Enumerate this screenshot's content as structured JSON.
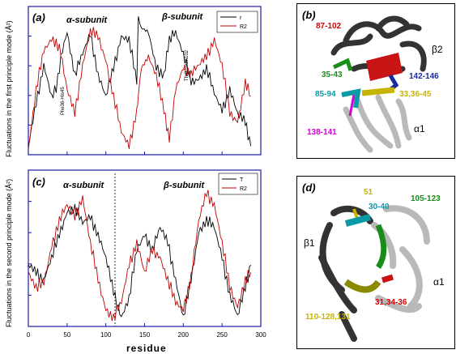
{
  "xlabel": "residue",
  "panel_a": {
    "label": "(a)",
    "alpha_title": "α-subunit",
    "beta_title": "β-subunit",
    "ylabel": "Fluctuations in the first principle mode (Å²)",
    "legend": [
      "r",
      "R2"
    ],
    "annot_left": "Phe36-His45",
    "annot_right": "Thr87-Asn102"
  },
  "panel_b": {
    "label": "(b)",
    "labels": [
      "87-102",
      "β2",
      "35-43",
      "142-146",
      "85-94",
      "33,36-45",
      "138-141",
      "α1"
    ]
  },
  "panel_c": {
    "label": "(c)",
    "alpha_title": "α-subunit",
    "beta_title": "β-subunit",
    "ylabel": "Fluctuations in the second principle mode (Å²)",
    "legend": [
      "T",
      "R2"
    ]
  },
  "panel_d": {
    "label": "(d)",
    "labels": [
      "51",
      "30-40",
      "105-123",
      "β1",
      "α1",
      "110-128,131",
      "31,34-36"
    ]
  },
  "colors": {
    "frame": "#1a1aa6",
    "series_black": "#000000",
    "series_red": "#c00000",
    "label_red": "#e00000",
    "label_green": "#1a8c1a",
    "label_blue": "#1a2aa0",
    "label_cyan": "#0a9aa6",
    "label_yellow": "#c8b400",
    "label_magenta": "#d400d4",
    "helix_dark": "#333333",
    "helix_light": "#b9b9b9"
  },
  "chart_data": [
    {
      "type": "line",
      "panel": "(a)",
      "xlim": [
        0,
        300
      ],
      "x": [
        0,
        10,
        20,
        30,
        36,
        42,
        50,
        60,
        70,
        80,
        90,
        100,
        110,
        120,
        130,
        140,
        142,
        146,
        155,
        165,
        175,
        182,
        190,
        200,
        210,
        220,
        230,
        240,
        250,
        260,
        270,
        280,
        287
      ],
      "series": [
        {
          "name": "r",
          "values": [
            0.05,
            0.35,
            0.62,
            0.4,
            0.45,
            0.68,
            0.85,
            0.55,
            0.7,
            0.84,
            0.55,
            0.4,
            0.6,
            0.82,
            0.8,
            0.5,
            0.95,
            0.88,
            0.85,
            0.6,
            0.55,
            0.8,
            0.85,
            0.7,
            0.5,
            0.52,
            0.6,
            0.42,
            0.3,
            0.45,
            0.28,
            0.22,
            0.05
          ]
        },
        {
          "name": "R2",
          "values": [
            0.02,
            0.45,
            0.72,
            0.8,
            0.78,
            0.7,
            0.45,
            0.28,
            0.62,
            0.86,
            0.82,
            0.65,
            0.4,
            0.15,
            0.05,
            0.3,
            0.42,
            0.6,
            0.68,
            0.55,
            0.3,
            0.1,
            0.45,
            0.6,
            0.56,
            0.62,
            0.68,
            0.8,
            0.62,
            0.28,
            0.22,
            0.5,
            0.4
          ]
        }
      ]
    },
    {
      "type": "line",
      "panel": "(c)",
      "xlim": [
        0,
        300
      ],
      "x": [
        0,
        10,
        20,
        30,
        40,
        50,
        60,
        70,
        80,
        90,
        100,
        110,
        120,
        130,
        140,
        150,
        160,
        170,
        180,
        190,
        200,
        210,
        220,
        230,
        240,
        250,
        260,
        270,
        280,
        287
      ],
      "series": [
        {
          "name": "T",
          "values": [
            0.4,
            0.35,
            0.3,
            0.45,
            0.6,
            0.75,
            0.78,
            0.68,
            0.72,
            0.6,
            0.45,
            0.22,
            0.05,
            0.18,
            0.5,
            0.6,
            0.5,
            0.65,
            0.55,
            0.3,
            0.05,
            0.3,
            0.62,
            0.7,
            0.65,
            0.45,
            0.2,
            0.06,
            0.25,
            0.4
          ]
        },
        {
          "name": "R2",
          "values": [
            0.35,
            0.25,
            0.28,
            0.52,
            0.7,
            0.8,
            0.72,
            0.85,
            0.55,
            0.3,
            0.1,
            0.05,
            0.15,
            0.4,
            0.55,
            0.35,
            0.5,
            0.45,
            0.3,
            0.15,
            0.1,
            0.32,
            0.7,
            0.88,
            0.8,
            0.55,
            0.25,
            0.12,
            0.3,
            0.35
          ]
        }
      ]
    }
  ]
}
